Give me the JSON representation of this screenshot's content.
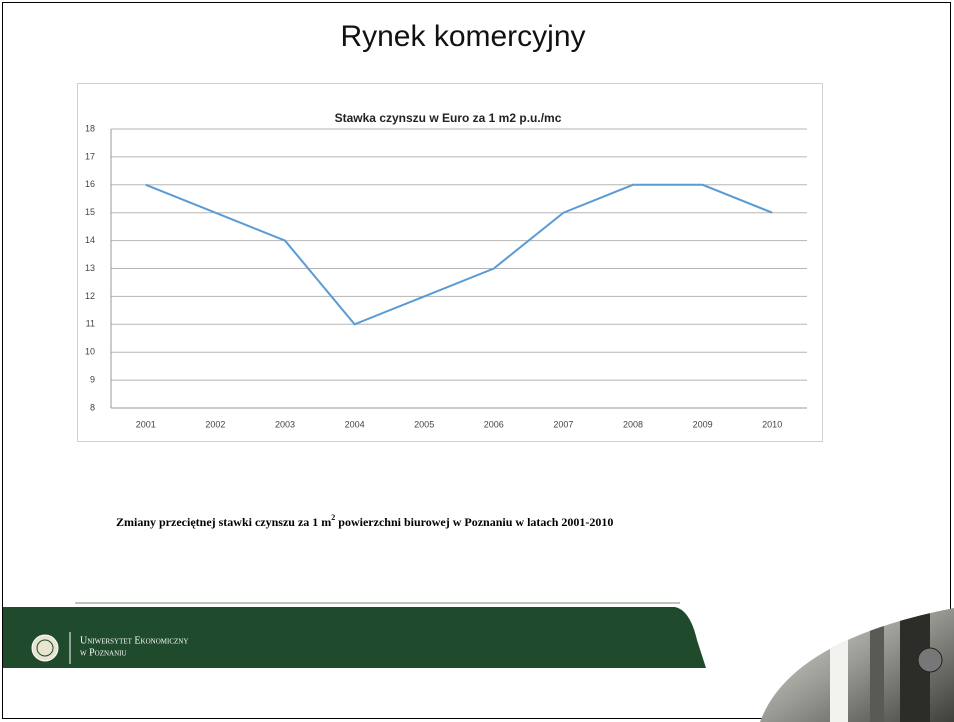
{
  "slide": {
    "title": "Rynek komercyjny",
    "caption": [
      "Zmiany przeciętnej stawki czynszu za 1 m",
      "2",
      " powierzchni biurowej w Poznaniu w latach 2001-2010"
    ],
    "footer": [
      "Uniwersytet Ekonomiczny",
      "w Poznaniu"
    ]
  },
  "chart_data": {
    "type": "line",
    "title": "Stawka czynszu w Euro za 1 m2 p.u./mc",
    "categories": [
      "2001",
      "2002",
      "2003",
      "2004",
      "2005",
      "2006",
      "2007",
      "2008",
      "2009",
      "2010"
    ],
    "values": [
      16,
      15,
      14,
      11,
      12,
      13,
      15,
      16,
      16,
      15
    ],
    "color": "#5b9bd5",
    "ylim": [
      8,
      18
    ],
    "yticks": [
      8,
      9,
      10,
      11,
      12,
      13,
      14,
      15,
      16,
      17,
      18
    ],
    "grid": true
  }
}
